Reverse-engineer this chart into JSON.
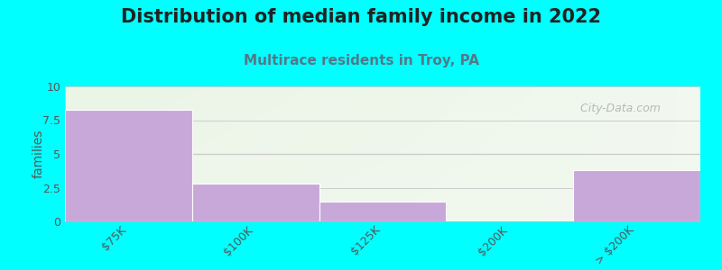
{
  "title": "Distribution of median family income in 2022",
  "subtitle": "Multirace residents in Troy, PA",
  "categories": [
    "$75K",
    "$100K",
    "$125K",
    "$200K",
    "> $200K"
  ],
  "values": [
    8.3,
    2.8,
    1.5,
    0.0,
    3.8
  ],
  "bar_color": "#C8A8D8",
  "bar_edge_color": "#FFFFFF",
  "ylabel": "families",
  "ylim": [
    0,
    10
  ],
  "yticks": [
    0,
    2.5,
    5,
    7.5,
    10
  ],
  "background_outer": "#00FFFF",
  "background_inner": "#EFF5EC",
  "grid_color": "#CCCCCC",
  "midline_color": "#F5AAAA",
  "title_fontsize": 15,
  "subtitle_fontsize": 11,
  "subtitle_color": "#557788",
  "watermark": "City-Data.com"
}
